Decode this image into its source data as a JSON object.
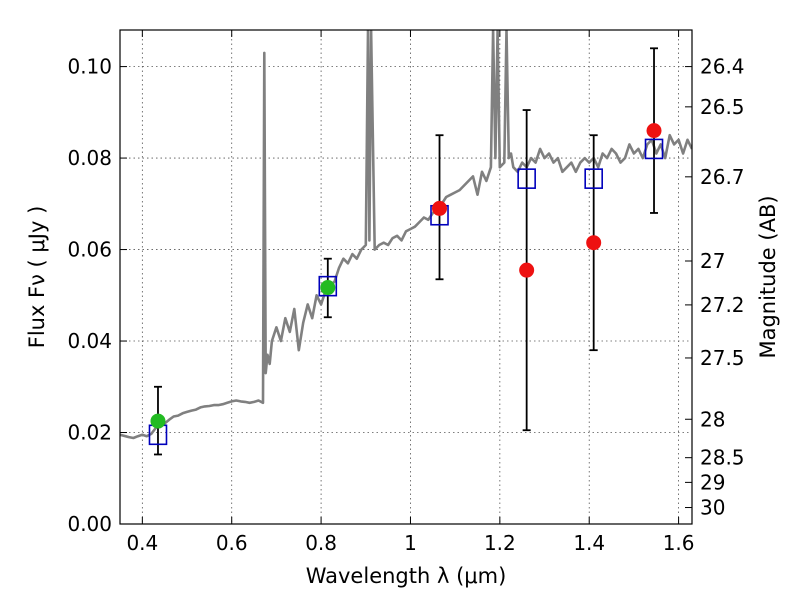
{
  "chart_data": {
    "type": "scatter",
    "xlabel": "Wavelength  λ (μm)",
    "ylabel": "Flux  Fν  ( μJy )",
    "y2label": "Magnitude (AB)",
    "xlim": [
      0.35,
      1.63
    ],
    "ylim": [
      0.0,
      0.108
    ],
    "grid": true,
    "x_ticks": [
      0.4,
      0.6,
      0.8,
      1.0,
      1.2,
      1.4,
      1.6
    ],
    "x_tick_labels": [
      "0.4",
      "0.6",
      "0.8",
      "1",
      "1.2",
      "1.4",
      "1.6"
    ],
    "y_ticks": [
      0.0,
      0.02,
      0.04,
      0.06,
      0.08,
      0.1
    ],
    "y_tick_labels": [
      "0.00",
      "0.02",
      "0.04",
      "0.06",
      "0.08",
      "0.10"
    ],
    "mag_ticks": [
      {
        "label": "26.4",
        "flux": 0.1
      },
      {
        "label": "26.5",
        "flux": 0.0912
      },
      {
        "label": "26.7",
        "flux": 0.0759
      },
      {
        "label": "27",
        "flux": 0.0575
      },
      {
        "label": "27.2",
        "flux": 0.0479
      },
      {
        "label": "27.5",
        "flux": 0.0363
      },
      {
        "label": "28",
        "flux": 0.0229
      },
      {
        "label": "28.5",
        "flux": 0.0145
      },
      {
        "label": "29",
        "flux": 0.0091
      },
      {
        "label": "30",
        "flux": 0.0036
      }
    ],
    "colors": {
      "template": "#808080",
      "green_points": "#22bb22",
      "red_points": "#ee1111",
      "model_squares": "#0000bb",
      "errorbars": "#000000",
      "grid": "#555555"
    },
    "series": [
      {
        "kind": "spectrum",
        "x": [
          0.35,
          0.37,
          0.38,
          0.39,
          0.4,
          0.41,
          0.42,
          0.43,
          0.44,
          0.45,
          0.46,
          0.47,
          0.48,
          0.49,
          0.5,
          0.51,
          0.52,
          0.53,
          0.54,
          0.55,
          0.56,
          0.57,
          0.58,
          0.59,
          0.6,
          0.61,
          0.62,
          0.63,
          0.64,
          0.65,
          0.66,
          0.67,
          0.673,
          0.676,
          0.68,
          0.685,
          0.69,
          0.7,
          0.71,
          0.72,
          0.73,
          0.74,
          0.75,
          0.76,
          0.77,
          0.78,
          0.79,
          0.8,
          0.81,
          0.82,
          0.83,
          0.84,
          0.85,
          0.86,
          0.87,
          0.88,
          0.89,
          0.9,
          0.905,
          0.908,
          0.912,
          0.92,
          0.93,
          0.94,
          0.95,
          0.96,
          0.97,
          0.98,
          0.99,
          1.0,
          1.01,
          1.02,
          1.03,
          1.04,
          1.05,
          1.06,
          1.07,
          1.08,
          1.09,
          1.1,
          1.11,
          1.12,
          1.13,
          1.14,
          1.15,
          1.16,
          1.17,
          1.18,
          1.185,
          1.19,
          1.195,
          1.2,
          1.21,
          1.215,
          1.22,
          1.225,
          1.23,
          1.24,
          1.25,
          1.26,
          1.27,
          1.28,
          1.29,
          1.3,
          1.31,
          1.32,
          1.33,
          1.34,
          1.35,
          1.36,
          1.37,
          1.38,
          1.39,
          1.4,
          1.41,
          1.42,
          1.43,
          1.44,
          1.45,
          1.46,
          1.47,
          1.48,
          1.49,
          1.5,
          1.51,
          1.52,
          1.53,
          1.54,
          1.55,
          1.56,
          1.57,
          1.58,
          1.59,
          1.6,
          1.61,
          1.62,
          1.63
        ],
        "y": [
          0.0195,
          0.019,
          0.0188,
          0.0192,
          0.0195,
          0.0192,
          0.0197,
          0.021,
          0.0212,
          0.022,
          0.0228,
          0.0235,
          0.0237,
          0.0242,
          0.0245,
          0.0248,
          0.025,
          0.0255,
          0.0257,
          0.0258,
          0.026,
          0.026,
          0.0262,
          0.0265,
          0.0268,
          0.027,
          0.0268,
          0.0267,
          0.0265,
          0.0267,
          0.027,
          0.0265,
          0.103,
          0.033,
          0.037,
          0.035,
          0.04,
          0.043,
          0.04,
          0.045,
          0.042,
          0.047,
          0.038,
          0.044,
          0.048,
          0.045,
          0.05,
          0.048,
          0.051,
          0.052,
          0.053,
          0.056,
          0.058,
          0.057,
          0.059,
          0.058,
          0.06,
          0.061,
          0.108,
          0.062,
          0.108,
          0.06,
          0.061,
          0.0615,
          0.061,
          0.0625,
          0.063,
          0.062,
          0.064,
          0.0645,
          0.065,
          0.066,
          0.067,
          0.0665,
          0.068,
          0.069,
          0.07,
          0.0715,
          0.072,
          0.0725,
          0.073,
          0.074,
          0.075,
          0.076,
          0.072,
          0.077,
          0.075,
          0.078,
          0.108,
          0.08,
          0.108,
          0.078,
          0.079,
          0.108,
          0.08,
          0.081,
          0.078,
          0.077,
          0.079,
          0.078,
          0.08,
          0.079,
          0.082,
          0.08,
          0.081,
          0.079,
          0.08,
          0.077,
          0.078,
          0.079,
          0.077,
          0.079,
          0.08,
          0.079,
          0.08,
          0.078,
          0.081,
          0.08,
          0.082,
          0.081,
          0.079,
          0.08,
          0.083,
          0.081,
          0.082,
          0.08,
          0.083,
          0.084,
          0.081,
          0.083,
          0.08,
          0.085,
          0.083,
          0.084,
          0.081,
          0.084,
          0.082
        ]
      },
      {
        "kind": "points",
        "color_key": "green_points",
        "x": [
          0.435,
          0.815
        ],
        "y": [
          0.0225,
          0.0517
        ],
        "yerr_low": [
          0.0152,
          0.0452
        ],
        "yerr_high": [
          0.03,
          0.058
        ]
      },
      {
        "kind": "points",
        "color_key": "red_points",
        "x": [
          1.065,
          1.26,
          1.41,
          1.545
        ],
        "y": [
          0.069,
          0.0555,
          0.0615,
          0.086
        ],
        "yerr_low": [
          0.0535,
          0.0205,
          0.038,
          0.068
        ],
        "yerr_high": [
          0.085,
          0.0905,
          0.085,
          0.104
        ]
      },
      {
        "kind": "squares",
        "color_key": "model_squares",
        "x": [
          0.435,
          0.815,
          1.065,
          1.26,
          1.41,
          1.545
        ],
        "y": [
          0.0195,
          0.052,
          0.0675,
          0.0755,
          0.0755,
          0.082
        ]
      }
    ]
  }
}
